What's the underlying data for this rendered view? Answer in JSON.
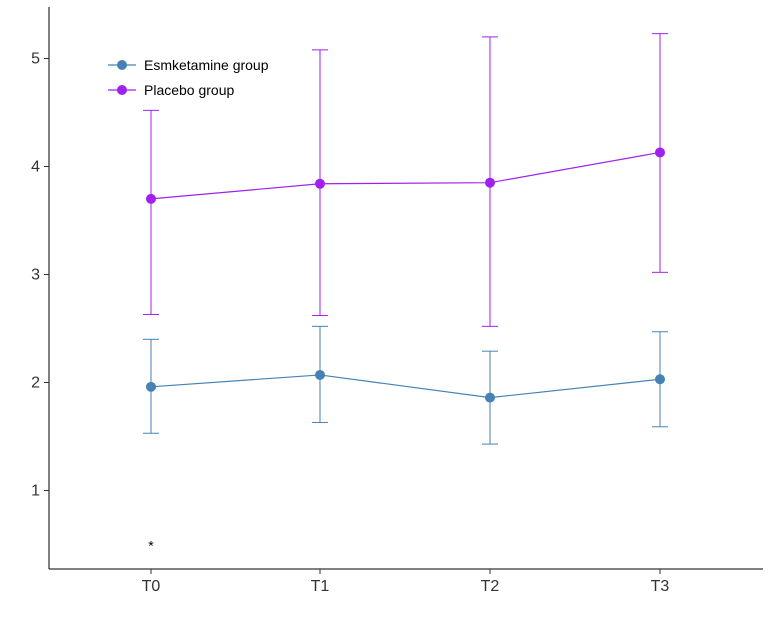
{
  "chart_data": {
    "type": "line",
    "title": "",
    "xlabel": "",
    "ylabel": "",
    "categories": [
      "T0",
      "T1",
      "T2",
      "T3"
    ],
    "yticks": [
      "1",
      "2",
      "3",
      "4",
      "5"
    ],
    "ylim": [
      0.3,
      5.5
    ],
    "grid": false,
    "legend_position": "top-left",
    "series": [
      {
        "name": "Esmketamine group",
        "color": "#4682B4",
        "values": [
          1.96,
          2.07,
          1.86,
          2.03
        ],
        "error_low": [
          1.53,
          1.63,
          1.43,
          1.59
        ],
        "error_high": [
          2.4,
          2.52,
          2.29,
          2.47
        ]
      },
      {
        "name": "Placebo group",
        "color": "#A020F0",
        "values": [
          3.7,
          3.84,
          3.85,
          4.13
        ],
        "error_low": [
          2.63,
          2.62,
          2.52,
          3.02
        ],
        "error_high": [
          4.52,
          5.08,
          5.2,
          5.23
        ]
      }
    ],
    "annotations": [
      {
        "text": "*",
        "category": "T0",
        "y": 0.52
      }
    ]
  }
}
